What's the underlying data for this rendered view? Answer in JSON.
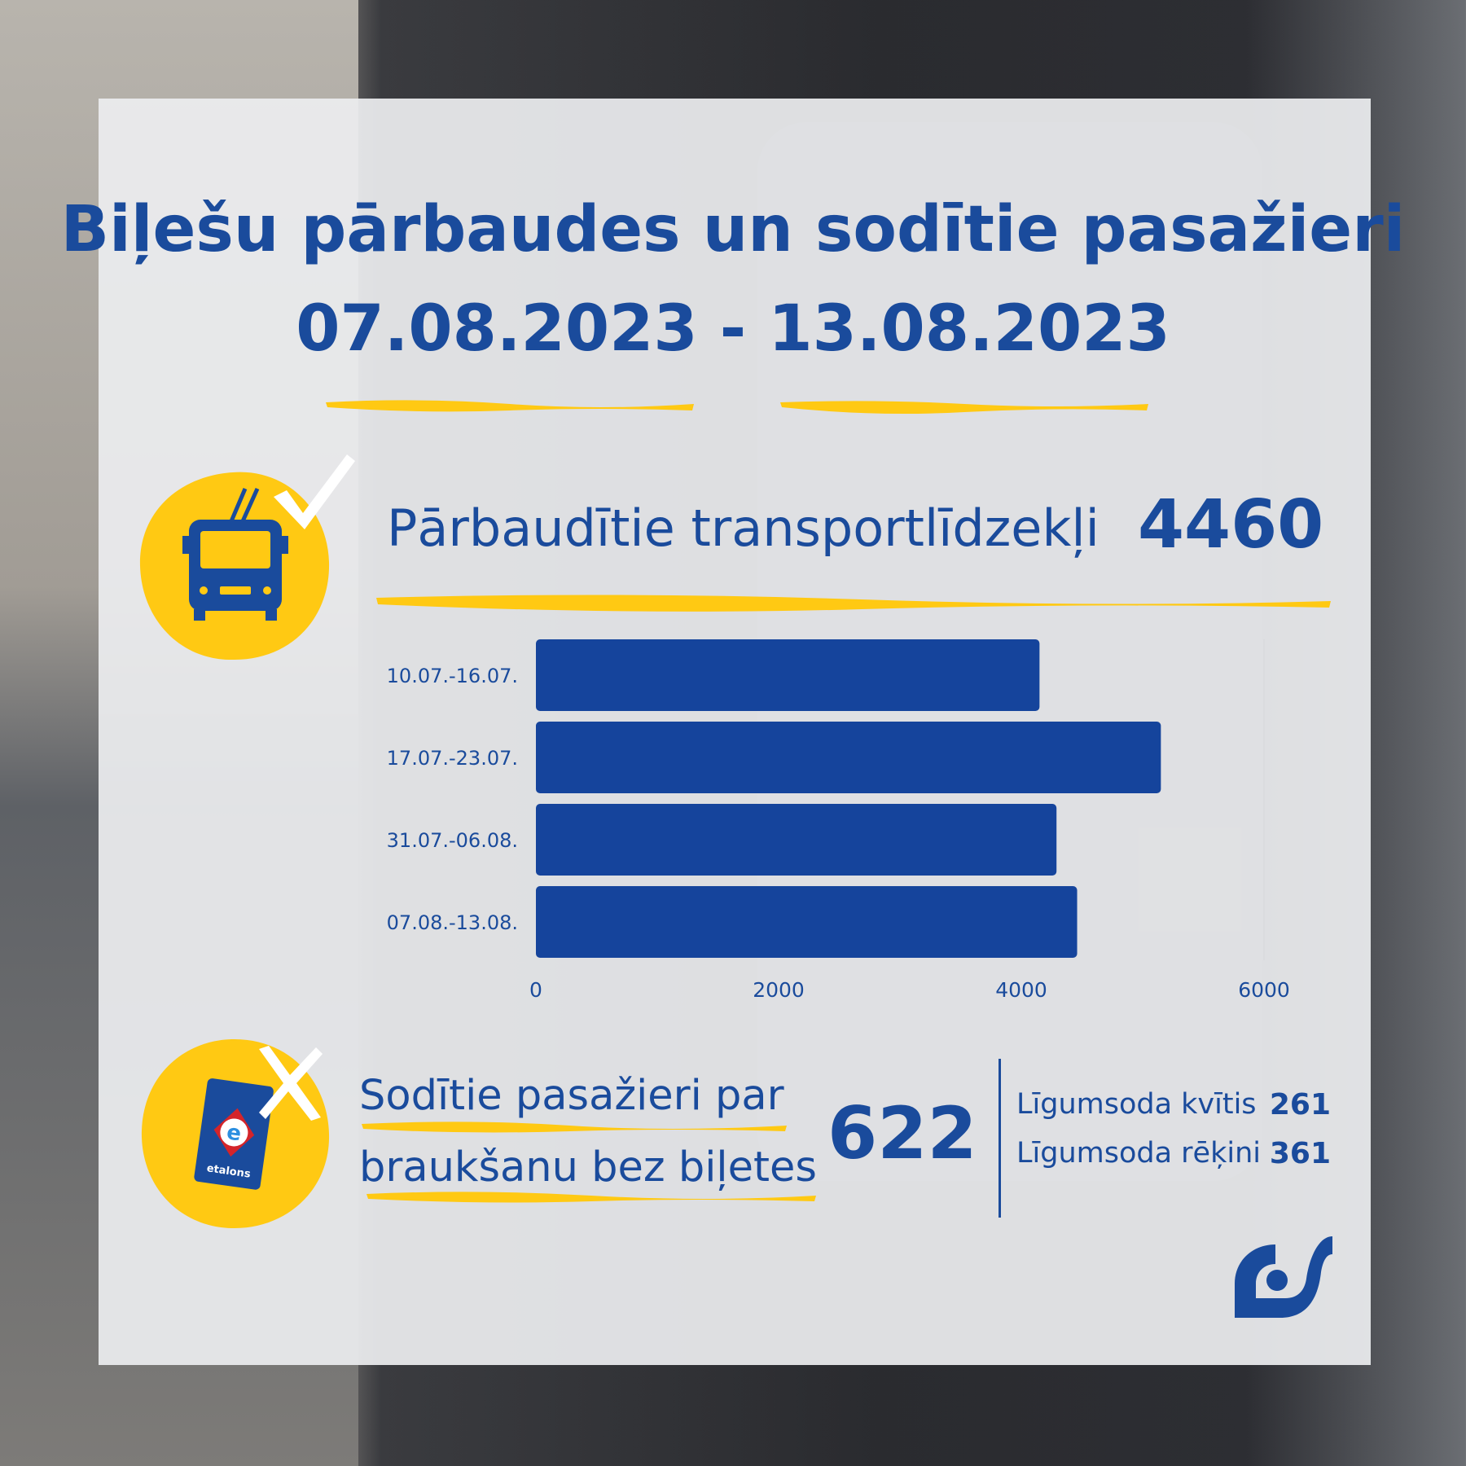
{
  "title": {
    "line1": "Biļešu pārbaudes un sodītie pasažieri",
    "line2": "07.08.2023 - 13.08.2023"
  },
  "vehicles": {
    "label": "Pārbaudītie transportlīdzekļi",
    "value": "4460"
  },
  "fined": {
    "label_line1": "Sodītie pasažieri par",
    "label_line2": "braukšanu bez biļetes",
    "value": "622",
    "items": [
      {
        "label": "Līgumsoda kvītis",
        "value": "261"
      },
      {
        "label": "Līgumsoda rēķini",
        "value": "361"
      }
    ]
  },
  "etalons_card_text": "etalons",
  "colors": {
    "accent_blue": "#1a4b9c",
    "bar_blue": "#15449c",
    "accent_yellow": "#ffc913"
  },
  "icons": [
    "trolleybus-icon",
    "checkmark-icon",
    "etalons-card-icon",
    "cross-icon",
    "company-logo-icon"
  ],
  "chart_data": {
    "type": "bar",
    "orientation": "horizontal",
    "categories": [
      "10.07.-16.07.",
      "17.07.-23.07.",
      "31.07.-06.08.",
      "07.08.-13.08."
    ],
    "values": [
      4150,
      5150,
      4290,
      4460
    ],
    "xlim": [
      0,
      6000
    ],
    "xticks": [
      0,
      2000,
      4000,
      6000
    ],
    "grid": false
  }
}
